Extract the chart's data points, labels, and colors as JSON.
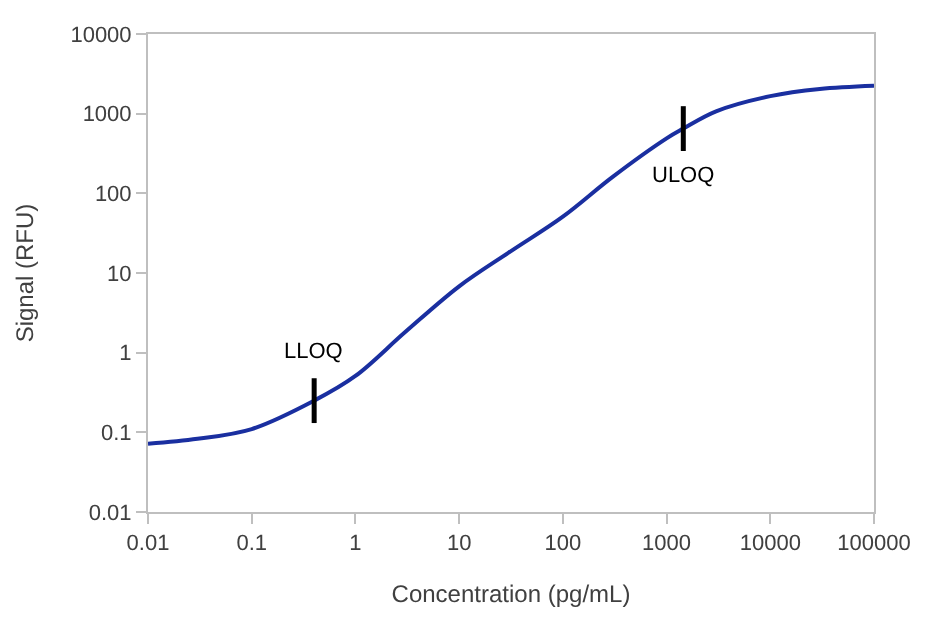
{
  "chart_data": {
    "type": "line",
    "xlabel": "Concentration (pg/mL)",
    "ylabel": "Signal (RFU)",
    "log": "xy",
    "x": [
      0.01,
      0.03,
      0.1,
      0.4,
      1,
      3,
      10,
      30,
      100,
      300,
      1000,
      1450,
      3000,
      10000,
      30000,
      100000
    ],
    "series": [
      {
        "color": "#1a2fa0",
        "values": [
          0.072,
          0.083,
          0.11,
          0.25,
          0.51,
          1.8,
          6.8,
          18,
          51,
          160,
          490,
          650,
          1070,
          1660,
          2040,
          2240
        ]
      }
    ],
    "xlim": [
      0.01,
      100000
    ],
    "xticks": [
      0.01,
      0.1,
      1,
      10,
      100,
      1000,
      10000,
      100000
    ],
    "ylim": [
      0.01,
      10000
    ],
    "yticks": [
      0.01,
      0.1,
      1,
      10,
      100,
      1000,
      10000
    ],
    "annotations": [
      {
        "text": "LLOQ",
        "x": 0.4,
        "y": 0.25
      },
      {
        "text": "ULOQ",
        "x": 1450,
        "y": 650
      }
    ],
    "legend": false,
    "marker": "none",
    "line_style": "solid"
  }
}
